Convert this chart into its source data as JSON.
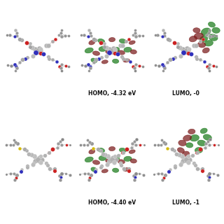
{
  "background_color": "#ffffff",
  "labels": [
    [
      "",
      "HOMO, -4.32 eV",
      "LUMO, -0"
    ],
    [
      "",
      "HOMO, -4.40 eV",
      "LUMO, -1"
    ]
  ],
  "label_fontsize": 5.5,
  "label_fontweight": "bold",
  "atom_gray": "#b0b0b0",
  "atom_gray2": "#c8c8c8",
  "atom_gray3": "#909090",
  "atom_blue": "#3030bb",
  "atom_red": "#cc2222",
  "atom_yellow": "#d4b800",
  "atom_brown": "#8b4513",
  "orbital_green": "#1a7a1a",
  "orbital_darkred": "#7a1a1a",
  "orbital_alpha": 0.72,
  "bond_color": "#b0b0b0",
  "bond_lw": 0.35
}
